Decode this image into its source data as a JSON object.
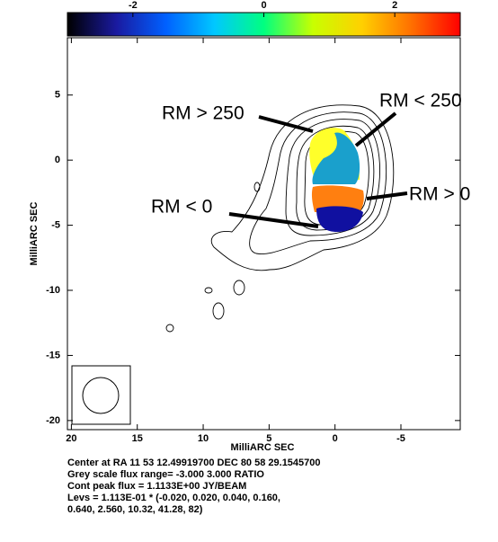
{
  "chart_data": {
    "type": "image",
    "colorbar": {
      "lim": [
        -3,
        3
      ],
      "ticks": [
        -2,
        0,
        2
      ],
      "colors": [
        "#000000",
        "#1a1aa0",
        "#0060ff",
        "#00c8ff",
        "#00ff80",
        "#c8ff00",
        "#ffd000",
        "#ff7000",
        "#ff0000"
      ]
    },
    "xlabel": "MilliARC SEC",
    "ylabel": "MilliARC SEC",
    "xlim": [
      20.3,
      -9.5
    ],
    "xticks": [
      20,
      15,
      10,
      5,
      0,
      -5
    ],
    "ylim": [
      -20.7,
      9.4
    ],
    "yticks": [
      5,
      0,
      -5,
      -10,
      -15,
      -20
    ],
    "annotations": [
      "RM > 250",
      "RM < 250",
      "RM > 0",
      "RM < 0"
    ],
    "caption": [
      "Center at RA 11 53 12.49919700  DEC 80 58 29.1545700",
      "Grey scale flux range= -3.000 3.000 RATIO",
      "Cont peak flux =  1.1133E+00 JY/BEAM",
      "Levs = 1.113E-01 * (-0.020, 0.020, 0.040, 0.160,",
      "0.640, 2.560, 10.32, 41.28, 82)"
    ]
  }
}
